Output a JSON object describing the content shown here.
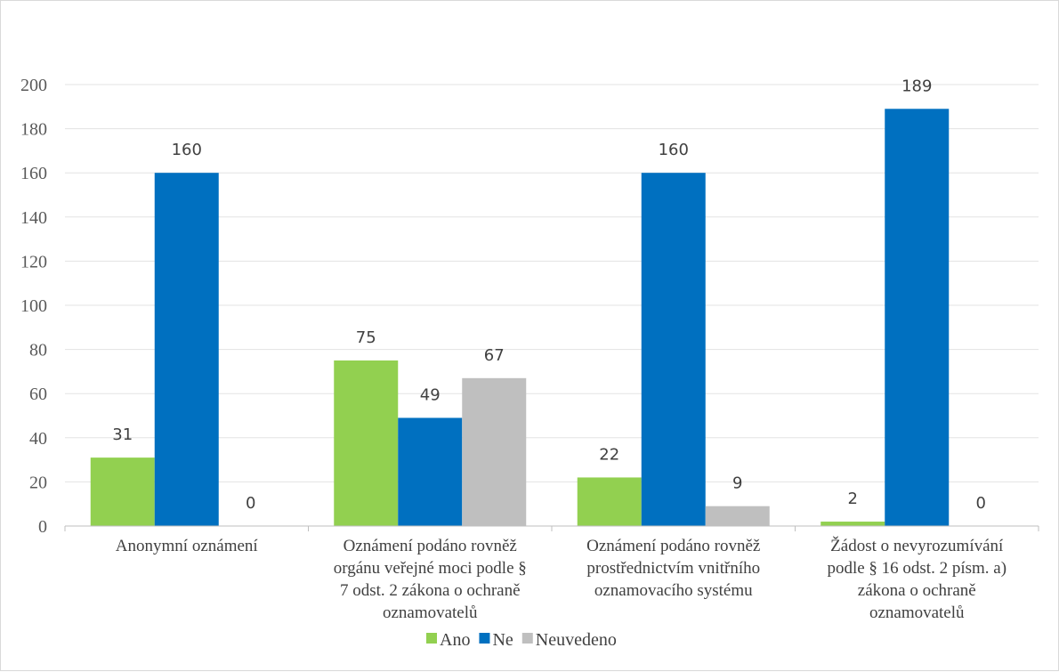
{
  "chart_data": {
    "type": "bar",
    "title": "",
    "xlabel": "",
    "ylabel": "",
    "categories": [
      [
        "Anonymní oznámení"
      ],
      [
        "Oznámení podáno rovněž",
        "orgánu veřejné moci podle §",
        "7 odst. 2 zákona o ochraně",
        "oznamovatelů"
      ],
      [
        "Oznámení podáno rovněž",
        "prostřednictvím vnitřního",
        "oznamovacího systému"
      ],
      [
        "Žádost o nevyrozumívání",
        "podle § 16 odst. 2 písm. a)",
        "zákona o ochraně",
        "oznamovatelů"
      ]
    ],
    "series": [
      {
        "name": "Ano",
        "color": "#92d050",
        "values": [
          31,
          75,
          22,
          2
        ]
      },
      {
        "name": "Ne",
        "color": "#0070c0",
        "values": [
          160,
          49,
          160,
          189
        ]
      },
      {
        "name": "Neuvedeno",
        "color": "#bfbfbf",
        "values": [
          0,
          67,
          9,
          0
        ]
      }
    ],
    "ylim": [
      0,
      200
    ],
    "yticks": [
      0,
      20,
      40,
      60,
      80,
      100,
      120,
      140,
      160,
      180,
      200
    ],
    "grid": true,
    "legend_position": "bottom",
    "data_labels": true
  }
}
